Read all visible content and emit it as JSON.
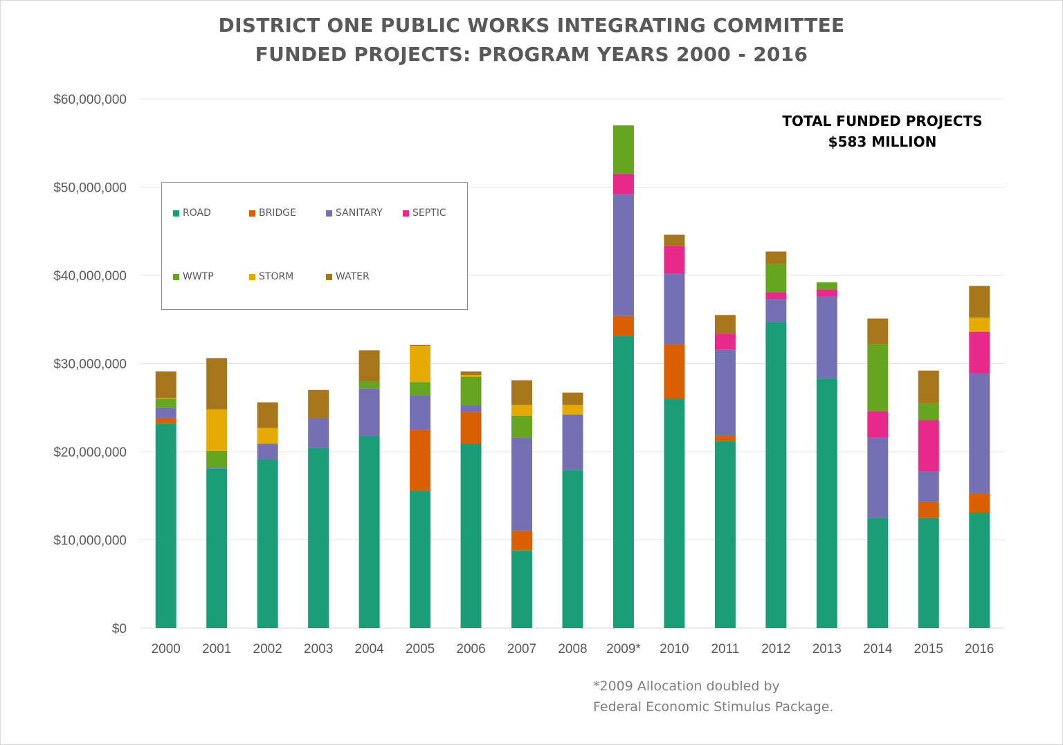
{
  "chart_data": {
    "type": "bar",
    "stacked": true,
    "title": "DISTRICT ONE PUBLIC WORKS INTEGRATING COMMITTEE",
    "subtitle": "FUNDED PROJECTS: PROGRAM YEARS 2000 - 2016",
    "annotation": {
      "line1": "TOTAL FUNDED PROJECTS",
      "line2": "$583 MILLION"
    },
    "footnote": {
      "line1": "*2009 Allocation doubled by",
      "line2": "Federal Economic Stimulus Package."
    },
    "xlabel": "",
    "ylabel": "",
    "ylim": [
      0,
      60000000
    ],
    "yticks": [
      0,
      10000000,
      20000000,
      30000000,
      40000000,
      50000000,
      60000000
    ],
    "ytick_labels": [
      "$0",
      "$10,000,000",
      "$20,000,000",
      "$30,000,000",
      "$40,000,000",
      "$50,000,000",
      "$60,000,000"
    ],
    "grid": true,
    "legend_placement": "upper-left inside",
    "categories": [
      "2000",
      "2001",
      "2002",
      "2003",
      "2004",
      "2005",
      "2006",
      "2007",
      "2008",
      "2009*",
      "2010",
      "2011",
      "2012",
      "2013",
      "2014",
      "2015",
      "2016"
    ],
    "unit": "$ millions",
    "series": [
      {
        "name": "ROAD",
        "color": "#1b9e77",
        "values": [
          23.2,
          18.1,
          19.1,
          20.4,
          21.8,
          15.6,
          20.9,
          8.8,
          17.9,
          33.1,
          26.0,
          21.2,
          34.7,
          28.3,
          12.5,
          12.5,
          13.1
        ]
      },
      {
        "name": "BRIDGE",
        "color": "#d95f02",
        "values": [
          0.6,
          0,
          0,
          0,
          0,
          6.9,
          3.6,
          2.2,
          0,
          2.3,
          6.2,
          0.6,
          0,
          0,
          0,
          1.8,
          2.2
        ]
      },
      {
        "name": "SANITARY",
        "color": "#7570b3",
        "values": [
          1.2,
          0.1,
          1.8,
          3.4,
          5.4,
          3.9,
          0.8,
          10.6,
          6.3,
          13.8,
          8.0,
          9.8,
          2.6,
          9.3,
          9.1,
          3.5,
          13.6
        ]
      },
      {
        "name": "SEPTIC",
        "color": "#e7298a",
        "values": [
          0,
          0,
          0,
          0,
          0,
          0,
          0,
          0,
          0,
          2.3,
          3.1,
          1.8,
          0.8,
          0.8,
          3.0,
          5.8,
          4.7
        ]
      },
      {
        "name": "WWTP",
        "color": "#66a61e",
        "values": [
          1.0,
          1.9,
          0,
          0,
          0.8,
          1.5,
          3.2,
          2.5,
          0,
          5.5,
          0,
          0,
          3.2,
          0.8,
          7.6,
          1.9,
          0
        ]
      },
      {
        "name": "STORM",
        "color": "#e6ab02",
        "values": [
          0.1,
          4.7,
          1.8,
          0,
          0,
          4.1,
          0.2,
          1.2,
          1.1,
          0,
          0,
          0,
          0,
          0,
          0,
          0,
          1.6
        ]
      },
      {
        "name": "WATER",
        "color": "#a6761d",
        "values": [
          3.0,
          5.8,
          2.9,
          3.2,
          3.5,
          0.1,
          0.4,
          2.8,
          1.4,
          0,
          1.3,
          2.1,
          1.4,
          0,
          2.9,
          3.7,
          3.6
        ]
      }
    ]
  }
}
